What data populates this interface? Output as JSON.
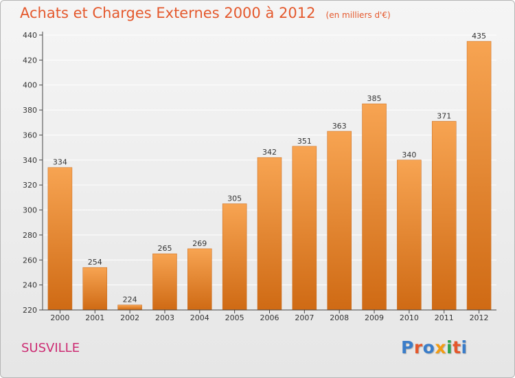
{
  "title": "Achats et Charges Externes 2000 à 2012",
  "subtitle": "(en milliers d'€)",
  "commune": "SUSVILLE",
  "logo": {
    "text": "Proxiti",
    "colors": [
      "#3a7dc9",
      "#e4582c",
      "#3a7dc9",
      "#f39c12",
      "#2ea44f",
      "#e4582c",
      "#3a7dc9"
    ]
  },
  "colors": {
    "bar_light": "#f7a452",
    "bar_dark": "#cf6a14",
    "axis": "#444444",
    "grid": "#ffffff"
  },
  "chart_data": {
    "type": "bar",
    "categories": [
      "2000",
      "2001",
      "2002",
      "2003",
      "2004",
      "2005",
      "2006",
      "2007",
      "2008",
      "2009",
      "2010",
      "2011",
      "2012"
    ],
    "values": [
      334,
      254,
      224,
      265,
      269,
      305,
      342,
      351,
      363,
      385,
      340,
      371,
      435
    ],
    "ylim": [
      220,
      440
    ],
    "yticks": [
      220,
      240,
      260,
      280,
      300,
      320,
      340,
      360,
      380,
      400,
      420,
      440
    ],
    "grid": true,
    "xlabel": "",
    "ylabel": ""
  }
}
